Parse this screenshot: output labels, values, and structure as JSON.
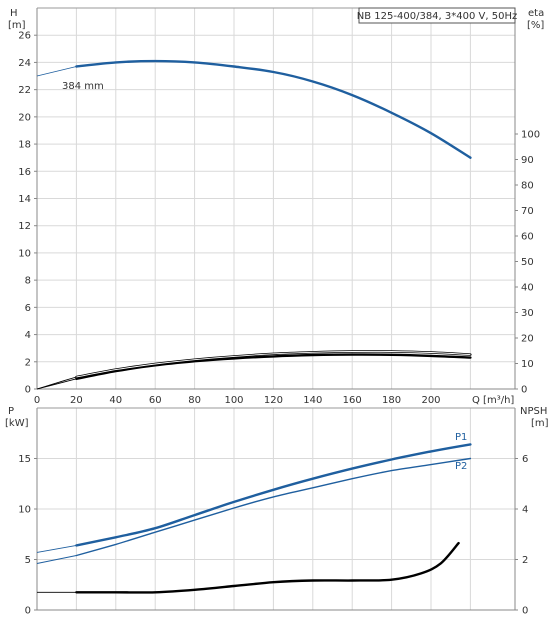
{
  "chart_data": [
    {
      "type": "line",
      "title": "NB 125-400/384, 3*400 V, 50Hz",
      "x_axis": {
        "label": "Q [m³/h]",
        "range": [
          0,
          220
        ],
        "ticks": [
          "0",
          "20",
          "40",
          "60",
          "80",
          "100",
          "120",
          "140",
          "160",
          "180",
          "200"
        ],
        "grid": true
      },
      "y_left": {
        "label": "H",
        "unit": "[m]",
        "range": [
          0,
          28
        ],
        "ticks": [
          "0",
          "2",
          "4",
          "6",
          "8",
          "10",
          "12",
          "14",
          "16",
          "18",
          "20",
          "22",
          "24",
          "26"
        ],
        "grid": true
      },
      "y_right": {
        "label": "eta",
        "unit": "[%]",
        "range": [
          0,
          100
        ],
        "ticks": [
          "0",
          "10",
          "20",
          "30",
          "40",
          "50",
          "60",
          "70",
          "80",
          "90",
          "100"
        ]
      },
      "series": [
        {
          "name": "384 mm",
          "axis": "left",
          "color": "#1f5f9f",
          "points_dashed_thin": [
            [
              0,
              23
            ],
            [
              20,
              23.7
            ]
          ],
          "points": [
            [
              20,
              23.7
            ],
            [
              40,
              24.0
            ],
            [
              60,
              24.1
            ],
            [
              80,
              24.0
            ],
            [
              100,
              23.7
            ],
            [
              120,
              23.3
            ],
            [
              140,
              22.6
            ],
            [
              160,
              21.6
            ],
            [
              180,
              20.3
            ],
            [
              200,
              18.8
            ],
            [
              220,
              17.0
            ]
          ]
        },
        {
          "axis": "left",
          "color": "#000000",
          "points_thin": [
            [
              0,
              0
            ],
            [
              10,
              2.4
            ],
            [
              20,
              4.7
            ]
          ],
          "points": [
            [
              20,
              4.7
            ],
            [
              40,
              7.6
            ],
            [
              60,
              9.8
            ],
            [
              80,
              11.5
            ],
            [
              100,
              12.8
            ],
            [
              120,
              13.8
            ],
            [
              140,
              14.4
            ],
            [
              160,
              14.7
            ],
            [
              180,
              14.7
            ],
            [
              200,
              14.3
            ],
            [
              220,
              13.5
            ]
          ]
        },
        {
          "axis": "left",
          "color": "#000000",
          "points_thin": [
            [
              0,
              0
            ],
            [
              10,
              2.0
            ],
            [
              20,
              4.0
            ]
          ],
          "points": [
            [
              20,
              4.0
            ],
            [
              40,
              7.0
            ],
            [
              60,
              9.3
            ],
            [
              80,
              10.9
            ],
            [
              100,
              12.0
            ],
            [
              120,
              12.8
            ],
            [
              140,
              13.3
            ],
            [
              160,
              13.5
            ],
            [
              180,
              13.4
            ],
            [
              200,
              13.0
            ],
            [
              220,
              12.3
            ]
          ]
        }
      ]
    },
    {
      "type": "line",
      "x_axis": {
        "range": [
          0,
          220
        ],
        "grid": true
      },
      "y_left": {
        "label": "P",
        "unit": "[kW]",
        "range": [
          0,
          20
        ],
        "ticks": [
          "0",
          "5",
          "10",
          "15"
        ],
        "grid": true
      },
      "y_right": {
        "label": "NPSH",
        "unit": "[m]",
        "range": [
          0,
          8
        ],
        "ticks": [
          "0",
          "2",
          "4",
          "6"
        ]
      },
      "series": [
        {
          "name": "P1",
          "axis": "left",
          "color": "#1f5f9f",
          "points_thin": [
            [
              0,
              5.7
            ],
            [
              20,
              6.4
            ]
          ],
          "points": [
            [
              20,
              6.4
            ],
            [
              40,
              7.2
            ],
            [
              60,
              8.1
            ],
            [
              80,
              9.4
            ],
            [
              100,
              10.7
            ],
            [
              120,
              11.9
            ],
            [
              140,
              13.0
            ],
            [
              160,
              14.0
            ],
            [
              180,
              14.9
            ],
            [
              200,
              15.7
            ],
            [
              220,
              16.4
            ]
          ]
        },
        {
          "name": "P2",
          "axis": "left",
          "color": "#1f5f9f",
          "points_thin": [
            [
              0,
              4.6
            ],
            [
              20,
              5.4
            ]
          ],
          "points": [
            [
              20,
              5.4
            ],
            [
              40,
              6.5
            ],
            [
              60,
              7.7
            ],
            [
              80,
              8.9
            ],
            [
              100,
              10.1
            ],
            [
              120,
              11.2
            ],
            [
              140,
              12.1
            ],
            [
              160,
              13.0
            ],
            [
              180,
              13.8
            ],
            [
              200,
              14.4
            ],
            [
              220,
              15.0
            ]
          ]
        },
        {
          "axis": "right",
          "color": "#000000",
          "points_thin": [
            [
              0,
              0.7
            ],
            [
              20,
              0.7
            ]
          ],
          "points": [
            [
              20,
              0.7
            ],
            [
              40,
              0.7
            ],
            [
              60,
              0.7
            ],
            [
              80,
              0.8
            ],
            [
              100,
              0.95
            ],
            [
              120,
              1.1
            ],
            [
              140,
              1.17
            ],
            [
              160,
              1.17
            ],
            [
              180,
              1.2
            ],
            [
              195,
              1.45
            ],
            [
              205,
              1.85
            ],
            [
              214,
              2.65
            ]
          ]
        }
      ]
    }
  ]
}
